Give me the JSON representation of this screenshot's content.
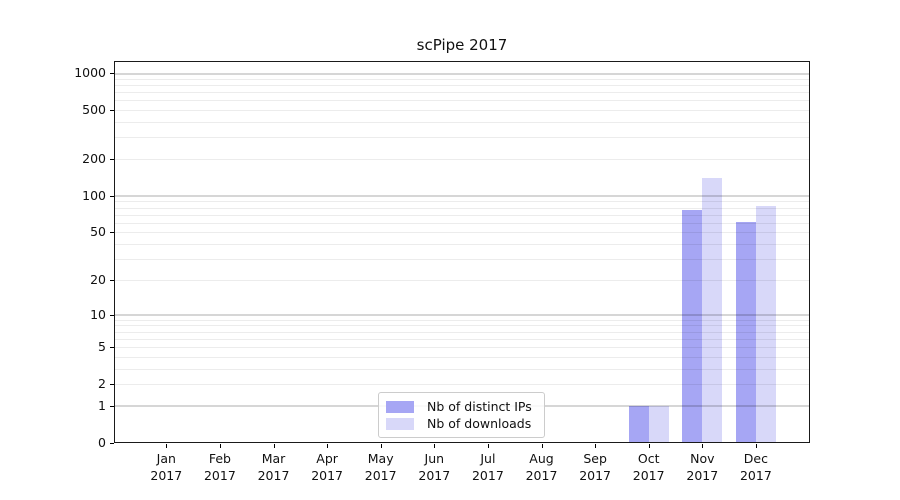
{
  "chart_data": {
    "type": "bar",
    "title": "scPipe 2017",
    "xlabel": "",
    "ylabel": "",
    "x_year": "2017",
    "categories": [
      "Jan",
      "Feb",
      "Mar",
      "Apr",
      "May",
      "Jun",
      "Jul",
      "Aug",
      "Sep",
      "Oct",
      "Nov",
      "Dec"
    ],
    "series": [
      {
        "name": "Nb of distinct IPs",
        "color": "#a6a6f4",
        "values": [
          0,
          0,
          0,
          0,
          0,
          0,
          0,
          0,
          0,
          1,
          77,
          61
        ]
      },
      {
        "name": "Nb of downloads",
        "color": "#d8d8f9",
        "values": [
          0,
          0,
          0,
          0,
          0,
          0,
          0,
          0,
          0,
          1,
          140,
          83
        ]
      }
    ],
    "y_scale": "log10(1+x)",
    "y_ticks": [
      0,
      1,
      2,
      5,
      10,
      20,
      50,
      100,
      200,
      500,
      1000
    ],
    "ylim": [
      0,
      1250
    ],
    "grid": "major and minor horizontal gridlines, drawn over bars",
    "legend_position": "lower center"
  }
}
